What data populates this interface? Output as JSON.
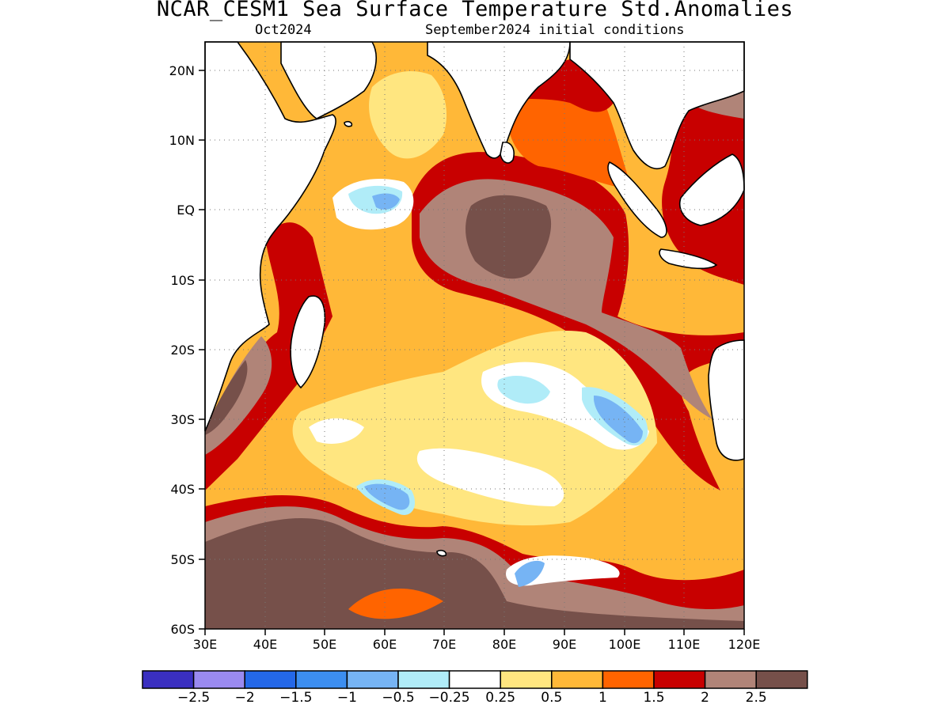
{
  "title": "NCAR_CESM1 Sea Surface Temperature Std.Anomalies",
  "subtitle_left": "Oct2024",
  "subtitle_right": "September2024 initial conditions",
  "map": {
    "lon_range": [
      30,
      120
    ],
    "lat_range": [
      -60,
      24
    ],
    "x_ticks": [
      "30E",
      "40E",
      "50E",
      "60E",
      "70E",
      "80E",
      "90E",
      "100E",
      "110E",
      "120E"
    ],
    "y_ticks": [
      "20N",
      "10N",
      "EQ",
      "10S",
      "20S",
      "30S",
      "40S",
      "50S",
      "60S"
    ],
    "grid": "dotted"
  },
  "colorbar": {
    "labels": [
      "−2.5",
      "−2",
      "−1.5",
      "−1",
      "−0.5",
      "−0.25",
      "0.25",
      "0.5",
      "1",
      "1.5",
      "2",
      "2.5"
    ],
    "colors": [
      "#3a2fc0",
      "#9a8af0",
      "#2468e8",
      "#3c8ef0",
      "#76b4f4",
      "#b0ecf8",
      "#ffffff",
      "#ffe680",
      "#ffb838",
      "#ff6400",
      "#c80000",
      "#b08478",
      "#76504a"
    ]
  },
  "palette": {
    "land": "#ffffff",
    "warm_05": "#ffe680",
    "warm_1": "#ffb838",
    "warm_15": "#ff6400",
    "warm_2": "#c80000",
    "warm_25": "#b08478",
    "warm_3": "#76504a",
    "cool_025": "#b0ecf8",
    "cool_05": "#76b4f4"
  }
}
